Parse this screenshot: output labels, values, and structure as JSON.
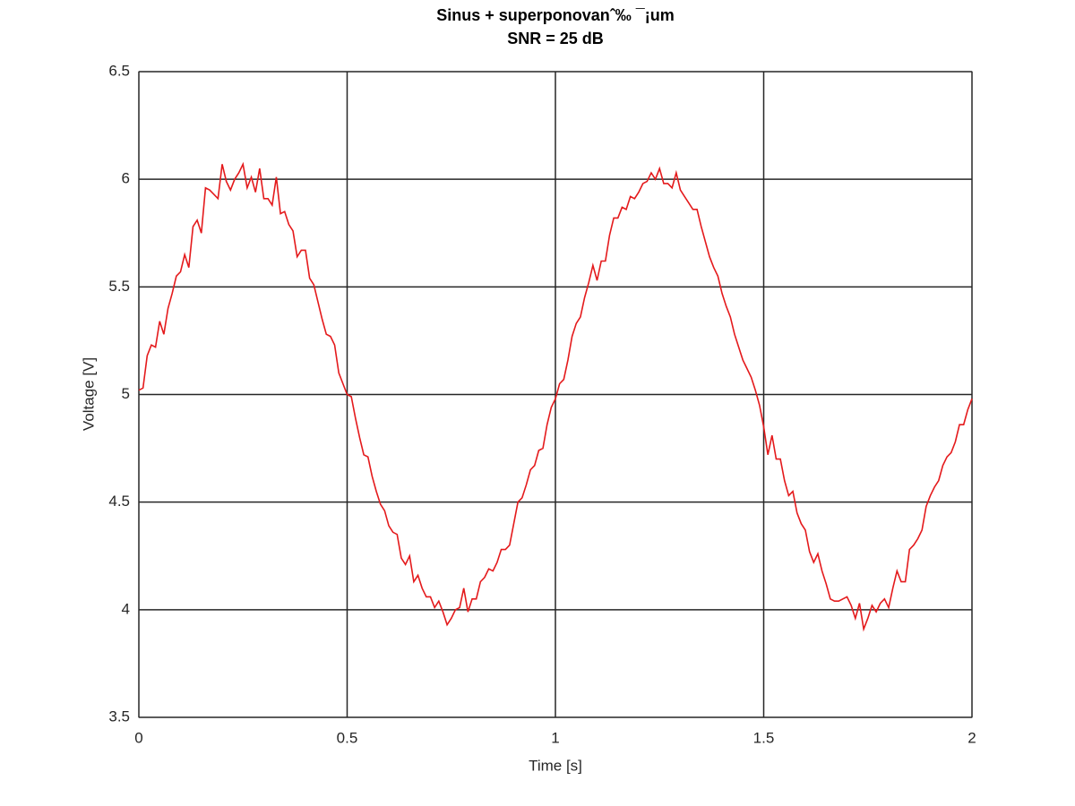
{
  "chart_data": {
    "type": "line",
    "title": "Sinus + superponovanˆ‰ ¯¡um",
    "subtitle": "SNR = 25 dB",
    "x_label": "Time [s]",
    "y_label": "Voltage [V]",
    "xlim": [
      0,
      2
    ],
    "ylim": [
      3.5,
      6.5
    ],
    "xticks": [
      0,
      0.5,
      1,
      1.5,
      2
    ],
    "yticks": [
      3.5,
      4,
      4.5,
      5,
      5.5,
      6,
      6.5
    ],
    "grid": true,
    "x": [
      0,
      0.01,
      0.02,
      0.03,
      0.04,
      0.05,
      0.06,
      0.07,
      0.08,
      0.09,
      0.1,
      0.11,
      0.12,
      0.13,
      0.14,
      0.15,
      0.16,
      0.17,
      0.18,
      0.19,
      0.2,
      0.21,
      0.22,
      0.23,
      0.24,
      0.25,
      0.26,
      0.27,
      0.28,
      0.29,
      0.3,
      0.31,
      0.32,
      0.33,
      0.34,
      0.35,
      0.36,
      0.37,
      0.38,
      0.39,
      0.4,
      0.41,
      0.42,
      0.43,
      0.44,
      0.45,
      0.46,
      0.47,
      0.48,
      0.49,
      0.5,
      0.51,
      0.52,
      0.53,
      0.54,
      0.55,
      0.56,
      0.57,
      0.58,
      0.59,
      0.6,
      0.61,
      0.62,
      0.63,
      0.64,
      0.65,
      0.66,
      0.67,
      0.68,
      0.69,
      0.7,
      0.71,
      0.72,
      0.73,
      0.74,
      0.75,
      0.76,
      0.77,
      0.78,
      0.79,
      0.8,
      0.81,
      0.82,
      0.83,
      0.84,
      0.85,
      0.86,
      0.87,
      0.88,
      0.89,
      0.9,
      0.91,
      0.92,
      0.93,
      0.94,
      0.95,
      0.96,
      0.97,
      0.98,
      0.99,
      1,
      1.01,
      1.02,
      1.03,
      1.04,
      1.05,
      1.06,
      1.07,
      1.08,
      1.09,
      1.1,
      1.11,
      1.12,
      1.13,
      1.14,
      1.15,
      1.16,
      1.17,
      1.18,
      1.19,
      1.2,
      1.21,
      1.22,
      1.23,
      1.24,
      1.25,
      1.26,
      1.27,
      1.28,
      1.29,
      1.3,
      1.31,
      1.32,
      1.33,
      1.34,
      1.35,
      1.36,
      1.37,
      1.38,
      1.39,
      1.4,
      1.41,
      1.42,
      1.43,
      1.44,
      1.45,
      1.46,
      1.47,
      1.48,
      1.49,
      1.5,
      1.51,
      1.52,
      1.53,
      1.54,
      1.55,
      1.56,
      1.57,
      1.58,
      1.59,
      1.6,
      1.61,
      1.62,
      1.63,
      1.64,
      1.65,
      1.66,
      1.67,
      1.68,
      1.69,
      1.7,
      1.71,
      1.72,
      1.73,
      1.74,
      1.75,
      1.76,
      1.77,
      1.78,
      1.79,
      1.8,
      1.81,
      1.82,
      1.83,
      1.84,
      1.85,
      1.86,
      1.87,
      1.88,
      1.89,
      1.9,
      1.91,
      1.92,
      1.93,
      1.94,
      1.95,
      1.96,
      1.97,
      1.98,
      1.99,
      2
    ],
    "series": [
      {
        "color": "#e41a1c",
        "values": [
          5.02,
          5.03,
          5.18,
          5.23,
          5.22,
          5.34,
          5.28,
          5.4,
          5.47,
          5.55,
          5.57,
          5.65,
          5.59,
          5.78,
          5.81,
          5.75,
          5.96,
          5.95,
          5.93,
          5.91,
          6.07,
          5.99,
          5.95,
          6.0,
          6.03,
          6.07,
          5.96,
          6.01,
          5.94,
          6.05,
          5.91,
          5.91,
          5.88,
          6.01,
          5.84,
          5.85,
          5.79,
          5.76,
          5.64,
          5.67,
          5.67,
          5.54,
          5.51,
          5.43,
          5.35,
          5.28,
          5.27,
          5.23,
          5.1,
          5.05,
          5.0,
          4.99,
          4.89,
          4.8,
          4.72,
          4.71,
          4.62,
          4.55,
          4.49,
          4.46,
          4.39,
          4.36,
          4.35,
          4.24,
          4.21,
          4.25,
          4.13,
          4.16,
          4.1,
          4.06,
          4.06,
          4.01,
          4.04,
          3.99,
          3.93,
          3.96,
          4.0,
          4.01,
          4.1,
          3.99,
          4.05,
          4.05,
          4.13,
          4.15,
          4.19,
          4.18,
          4.22,
          4.28,
          4.28,
          4.3,
          4.4,
          4.5,
          4.52,
          4.58,
          4.65,
          4.67,
          4.74,
          4.75,
          4.86,
          4.94,
          4.98,
          5.05,
          5.07,
          5.16,
          5.27,
          5.33,
          5.36,
          5.45,
          5.52,
          5.6,
          5.53,
          5.62,
          5.62,
          5.74,
          5.82,
          5.82,
          5.87,
          5.86,
          5.92,
          5.91,
          5.94,
          5.98,
          5.99,
          6.03,
          6.0,
          6.05,
          5.98,
          5.98,
          5.96,
          6.03,
          5.95,
          5.92,
          5.89,
          5.86,
          5.86,
          5.78,
          5.71,
          5.64,
          5.59,
          5.55,
          5.47,
          5.41,
          5.36,
          5.28,
          5.22,
          5.16,
          5.12,
          5.08,
          5.02,
          4.95,
          4.85,
          4.72,
          4.81,
          4.7,
          4.7,
          4.6,
          4.53,
          4.55,
          4.45,
          4.4,
          4.37,
          4.27,
          4.22,
          4.26,
          4.18,
          4.12,
          4.05,
          4.04,
          4.04,
          4.05,
          4.06,
          4.02,
          3.96,
          4.03,
          3.91,
          3.96,
          4.02,
          3.99,
          4.03,
          4.05,
          4.01,
          4.1,
          4.18,
          4.13,
          4.13,
          4.28,
          4.3,
          4.33,
          4.37,
          4.48,
          4.53,
          4.57,
          4.6,
          4.67,
          4.71,
          4.73,
          4.78,
          4.86,
          4.86,
          4.93,
          4.98
        ]
      }
    ]
  }
}
